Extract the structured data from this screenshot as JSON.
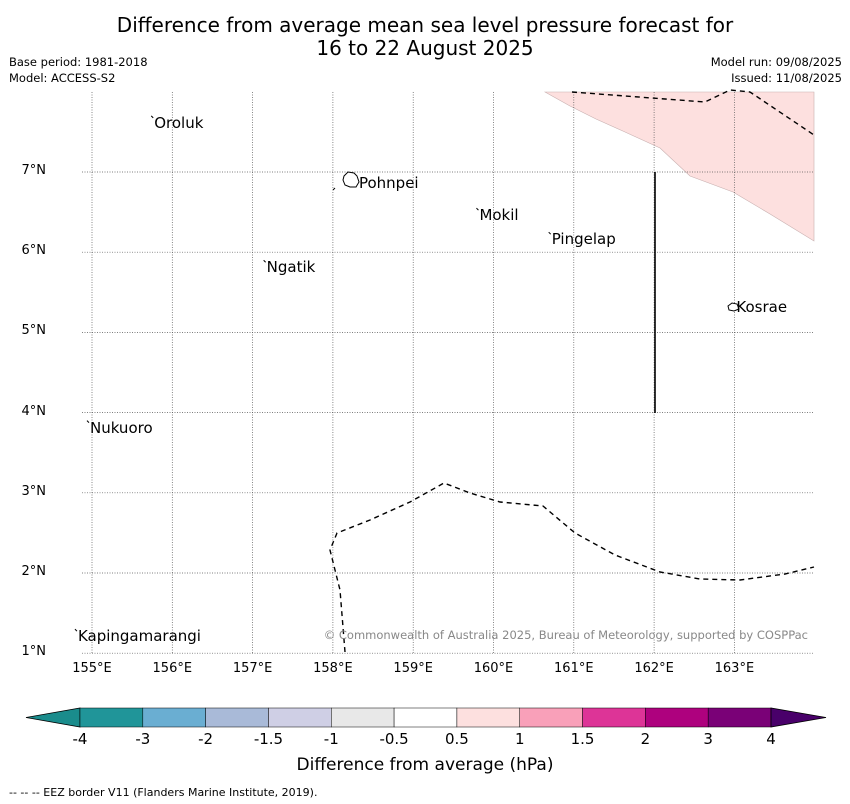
{
  "header": {
    "title_line1": "Difference from average mean sea level pressure forecast for",
    "title_line2": "16 to 22 August 2025",
    "base_period": "Base period: 1981-2018",
    "model": "Model: ACCESS-S2",
    "model_run": "Model run: 09/08/2025",
    "issued": "Issued: 11/08/2025"
  },
  "map": {
    "lon_ticks": [
      "155°E",
      "156°E",
      "157°E",
      "158°E",
      "159°E",
      "160°E",
      "161°E",
      "162°E",
      "163°E"
    ],
    "lat_ticks": [
      "7°N",
      "6°N",
      "5°N",
      "4°N",
      "3°N",
      "2°N",
      "1°N"
    ],
    "places": [
      {
        "name": "Oroluk",
        "lon": 155.75,
        "lat": 7.6
      },
      {
        "name": "Pohnpei",
        "lon": 158.3,
        "lat": 6.85
      },
      {
        "name": "Mokil",
        "lon": 159.8,
        "lat": 6.45
      },
      {
        "name": "Pingelap",
        "lon": 160.7,
        "lat": 6.15
      },
      {
        "name": "Ngatik",
        "lon": 157.15,
        "lat": 5.8
      },
      {
        "name": "Kosrae",
        "lon": 163.0,
        "lat": 5.3
      },
      {
        "name": "Nukuoro",
        "lon": 154.95,
        "lat": 3.8
      },
      {
        "name": "Kapingamarangi",
        "lon": 154.8,
        "lat": 1.2
      }
    ],
    "credit": "© Commonwealth of Australia 2025, Bureau of Meteorology, supported by COSPPac",
    "shaded_category": "0.5 to 1",
    "grid": true
  },
  "colorbar": {
    "title": "Difference from average (hPa)",
    "labels": [
      "-4",
      "-3",
      "-2",
      "-1.5",
      "-1",
      "-0.5",
      "0.5",
      "1",
      "1.5",
      "2",
      "3",
      "4"
    ],
    "colors": [
      "#1a8c8c",
      "#209599",
      "#6aaed2",
      "#a9bad8",
      "#cfcfe5",
      "#e8e8e8",
      "#ffffff",
      "#fde0df",
      "#f9a0b9",
      "#dd3497",
      "#ae017e",
      "#7a0177",
      "#49006a"
    ]
  },
  "footer": {
    "legend_text": "--  --  -- EEZ border V11 (Flanders Marine Institute, 2019)."
  }
}
